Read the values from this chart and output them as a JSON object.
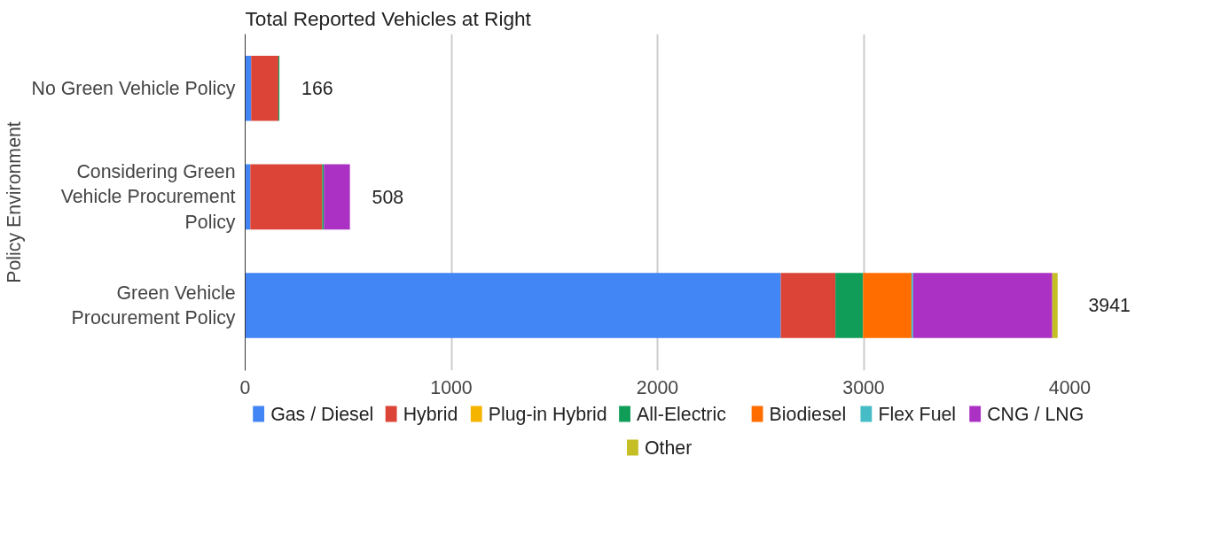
{
  "chart_data": {
    "type": "bar",
    "orientation": "horizontal",
    "stacked": true,
    "title": "Total Reported Vehicles at Right",
    "ylabel": "Policy Environment",
    "categories": [
      "No Green Vehicle Policy",
      "Considering Green Vehicle Procurement Policy",
      "Green Vehicle Procurement Policy"
    ],
    "series": [
      {
        "name": "Gas / Diesel",
        "color": "#4285f4",
        "values": [
          29,
          25,
          2598
        ]
      },
      {
        "name": "Hybrid",
        "color": "#db4437",
        "values": [
          132,
          349,
          265
        ]
      },
      {
        "name": "Plug-in Hybrid",
        "color": "#f4b400",
        "values": [
          0,
          0,
          0
        ]
      },
      {
        "name": "All-Electric",
        "color": "#0f9d58",
        "values": [
          5,
          8,
          134
        ]
      },
      {
        "name": "Biodiesel",
        "color": "#ff6d00",
        "values": [
          0,
          0,
          235
        ]
      },
      {
        "name": "Flex Fuel",
        "color": "#46bdc6",
        "values": [
          0,
          0,
          8
        ]
      },
      {
        "name": "CNG / LNG",
        "color": "#ab30c4",
        "values": [
          0,
          126,
          675
        ]
      },
      {
        "name": "Other",
        "color": "#c5bf25",
        "values": [
          0,
          0,
          26
        ]
      }
    ],
    "totals": [
      "166",
      "508",
      "3941"
    ],
    "xlim": [
      0,
      4000
    ],
    "xticks": [
      0,
      1000,
      2000,
      3000,
      4000
    ],
    "grid": "x",
    "legend": "bottom"
  }
}
